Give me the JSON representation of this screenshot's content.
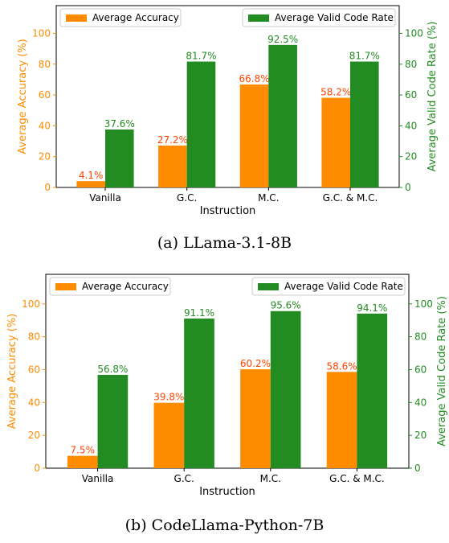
{
  "colors": {
    "accuracy": "#ff8c00",
    "valid": "#228b22",
    "accuracy_label": "#ff4500",
    "valid_label": "#228b22",
    "axis": "#000000"
  },
  "chart_data": [
    {
      "type": "bar",
      "caption": "(a) LLama-3.1-8B",
      "title": "",
      "xlabel": "Instruction",
      "ylabel_left": "Average Accuracy (%)",
      "ylabel_right": "Average Valid Code Rate (%)",
      "ylim": [
        0,
        118
      ],
      "yticks": [
        0,
        20,
        40,
        60,
        80,
        100
      ],
      "grid": false,
      "legend": [
        "top-left",
        "top-right"
      ],
      "categories": [
        "Vanilla",
        "G.C.",
        "M.C.",
        "G.C. & M.C."
      ],
      "series": [
        {
          "name": "Average Accuracy",
          "axis": "left",
          "values": [
            4.1,
            27.2,
            66.8,
            58.2
          ],
          "labels": [
            "4.1%",
            "27.2%",
            "66.8%",
            "58.2%"
          ]
        },
        {
          "name": "Average Valid Code Rate",
          "axis": "right",
          "values": [
            37.6,
            81.7,
            92.5,
            81.7
          ],
          "labels": [
            "37.6%",
            "81.7%",
            "92.5%",
            "81.7%"
          ]
        }
      ]
    },
    {
      "type": "bar",
      "caption": "(b) CodeLlama-Python-7B",
      "title": "",
      "xlabel": "Instruction",
      "ylabel_left": "Average Accuracy (%)",
      "ylabel_right": "Average Valid Code Rate (%)",
      "ylim": [
        0,
        118
      ],
      "yticks": [
        0,
        20,
        40,
        60,
        80,
        100
      ],
      "grid": false,
      "legend": [
        "top-left",
        "top-right"
      ],
      "categories": [
        "Vanilla",
        "G.C.",
        "M.C.",
        "G.C. & M.C."
      ],
      "series": [
        {
          "name": "Average Accuracy",
          "axis": "left",
          "values": [
            7.5,
            39.8,
            60.2,
            58.6
          ],
          "labels": [
            "7.5%",
            "39.8%",
            "60.2%",
            "58.6%"
          ]
        },
        {
          "name": "Average Valid Code Rate",
          "axis": "right",
          "values": [
            56.8,
            91.1,
            95.6,
            94.1
          ],
          "labels": [
            "56.8%",
            "91.1%",
            "95.6%",
            "94.1%"
          ]
        }
      ]
    }
  ]
}
